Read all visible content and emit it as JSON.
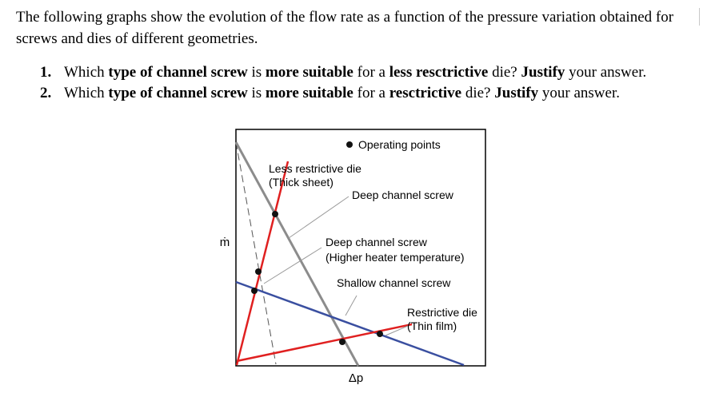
{
  "intro": "The following graphs show the evolution of the flow rate as a function of the pressure variation obtained for screws and dies of different geometries.",
  "questions": [
    {
      "number": "1.",
      "parts": [
        {
          "text": "Which ",
          "bold": false
        },
        {
          "text": "type of channel screw",
          "bold": true
        },
        {
          "text": " is ",
          "bold": false
        },
        {
          "text": "more suitable",
          "bold": true
        },
        {
          "text": " for a ",
          "bold": false
        },
        {
          "text": "less resctrictive",
          "bold": true
        },
        {
          "text": " die? ",
          "bold": false
        },
        {
          "text": "Justify",
          "bold": true
        },
        {
          "text": " your answer.",
          "bold": false
        }
      ]
    },
    {
      "number": "2.",
      "parts": [
        {
          "text": "Which ",
          "bold": false
        },
        {
          "text": "type of channel screw",
          "bold": true
        },
        {
          "text": " is ",
          "bold": false
        },
        {
          "text": "more suitable",
          "bold": true
        },
        {
          "text": " for a ",
          "bold": false
        },
        {
          "text": "resctrictive",
          "bold": true
        },
        {
          "text": " die? ",
          "bold": false
        },
        {
          "text": "Justify",
          "bold": true
        },
        {
          "text": " your answer.",
          "bold": false
        }
      ]
    }
  ],
  "figure": {
    "legend": "Operating points",
    "y_axis_label": "ṁ",
    "x_axis_label": "Δp",
    "labels": {
      "less_restrictive_die": "Less restrictive die",
      "thick_sheet": "(Thick sheet)",
      "deep_channel_screw": "Deep channel screw",
      "deep_channel_screw_hot": "Deep channel screw",
      "higher_heater_temperature": "(Higher heater temperature)",
      "shallow_channel_screw": "Shallow channel screw",
      "restrictive_die": "Restrictive die",
      "thin_film": "(Thin film)"
    },
    "colors": {
      "die_lines": "#e02020",
      "deep_screw": "#8c8c8c",
      "shallow_screw": "#3a4fa0",
      "leader": "#9a9a9a",
      "frame": "#000000"
    }
  }
}
